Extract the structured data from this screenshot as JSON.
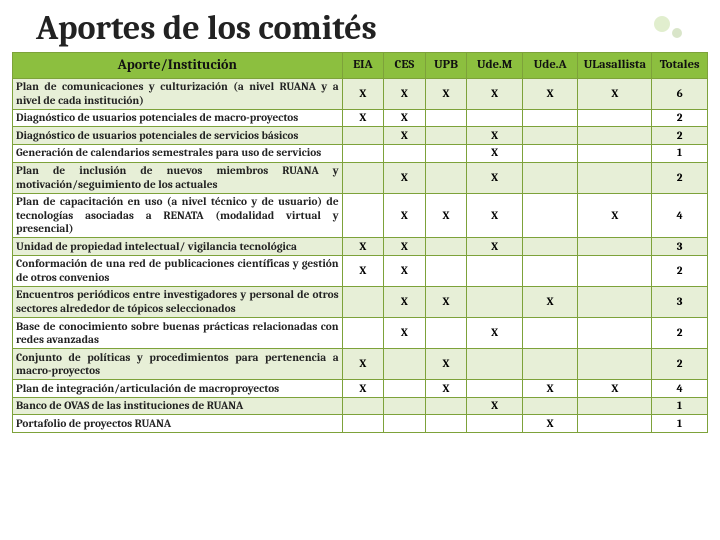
{
  "title": "Aportes de los comités",
  "headers": [
    "Aporte/Institución",
    "EIA",
    "CES",
    "UPB",
    "Ude.M",
    "Ude.A",
    "ULasallista",
    "Totales"
  ],
  "rows": [
    {
      "desc": "Plan de comunicaciones y culturización (a nivel RUANA y a nivel de cada institución)",
      "c": [
        "X",
        "X",
        "X",
        "X",
        "X",
        "X",
        "6"
      ]
    },
    {
      "desc": "Diagnóstico de usuarios potenciales de macro-proyectos",
      "c": [
        "X",
        "X",
        "",
        "",
        "",
        "",
        "2"
      ]
    },
    {
      "desc": "Diagnóstico de usuarios potenciales de servicios básicos",
      "c": [
        "",
        "X",
        "",
        "X",
        "",
        "",
        "2"
      ]
    },
    {
      "desc": "Generación de calendarios semestrales para uso de servicios",
      "c": [
        "",
        "",
        "",
        "X",
        "",
        "",
        "1"
      ]
    },
    {
      "desc": "Plan de inclusión de nuevos miembros RUANA y motivación/seguimiento de los actuales",
      "c": [
        "",
        "X",
        "",
        "X",
        "",
        "",
        "2"
      ]
    },
    {
      "desc": "Plan de capacitación en uso (a nivel técnico y de usuario) de tecnologías asociadas a RENATA (modalidad virtual y presencial)",
      "c": [
        "",
        "X",
        "X",
        "X",
        "",
        "X",
        "4"
      ]
    },
    {
      "desc": "Unidad de propiedad intelectual/ vigilancia tecnológica",
      "c": [
        "X",
        "X",
        "",
        "X",
        "",
        "",
        "3"
      ]
    },
    {
      "desc": "Conformación de una red de publicaciones científicas y gestión de otros convenios",
      "c": [
        "X",
        "X",
        "",
        "",
        "",
        "",
        "2"
      ]
    },
    {
      "desc": "Encuentros periódicos entre investigadores y personal de otros sectores alrededor de tópicos seleccionados",
      "c": [
        "",
        "X",
        "X",
        "",
        "X",
        "",
        "3"
      ]
    },
    {
      "desc": "Base de conocimiento sobre buenas prácticas relacionadas con redes avanzadas",
      "c": [
        "",
        "X",
        "",
        "X",
        "",
        "",
        "2"
      ]
    },
    {
      "desc": "Conjunto de políticas y procedimientos para pertenencia a macro-proyectos",
      "c": [
        "X",
        "",
        "X",
        "",
        "",
        "",
        "2"
      ]
    },
    {
      "desc": "Plan de integración/articulación de macroproyectos",
      "c": [
        "X",
        "",
        "X",
        "",
        "X",
        "X",
        "4"
      ]
    },
    {
      "desc": "Banco de OVAS de las instituciones de RUANA",
      "c": [
        "",
        "",
        "",
        "X",
        "",
        "",
        "1"
      ]
    },
    {
      "desc": "Portafolio de proyectos RUANA",
      "c": [
        "",
        "",
        "",
        "",
        "X",
        "",
        "1"
      ]
    }
  ],
  "style": {
    "header_bg": "#8cbf3f",
    "odd_bg": "#e7efd7",
    "even_bg": "#ffffff",
    "border": "#7da23a"
  }
}
